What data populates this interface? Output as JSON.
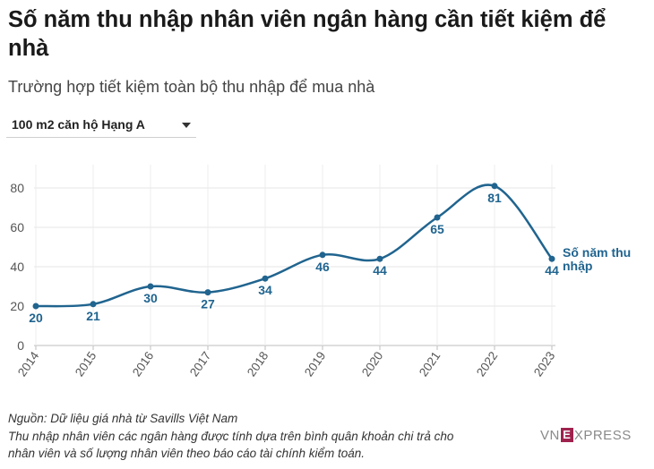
{
  "title": "Số năm thu nhập nhân viên ngân hàng cần tiết kiệm để nhà",
  "subtitle": "Trường hợp tiết kiệm toàn bộ thu nhập để mua nhà",
  "dropdown": {
    "selected": "100 m2 căn hộ Hạng A"
  },
  "chart_data": {
    "type": "line",
    "x": [
      "2014",
      "2015",
      "2016",
      "2017",
      "2018",
      "2019",
      "2020",
      "2021",
      "2022",
      "2023"
    ],
    "series": [
      {
        "name": "Số năm thu nhập",
        "values": [
          20,
          21,
          30,
          27,
          34,
          46,
          44,
          65,
          81,
          44
        ]
      }
    ],
    "ylim": [
      0,
      80
    ],
    "yticks": [
      0,
      20,
      40,
      60,
      80
    ],
    "grid": true,
    "color": "#20648f"
  },
  "notes": {
    "source": "Nguồn: Dữ liệu giá nhà từ Savills Việt Nam",
    "line1": "Thu nhập nhân viên các ngân hàng được tính dựa trên bình quân khoản chi trả cho",
    "line2": "nhân viên và số lượng nhân viên theo báo cáo tài chính kiểm toán."
  },
  "logo": {
    "left": "VN",
    "mark": "E",
    "right": "XPRESS"
  }
}
